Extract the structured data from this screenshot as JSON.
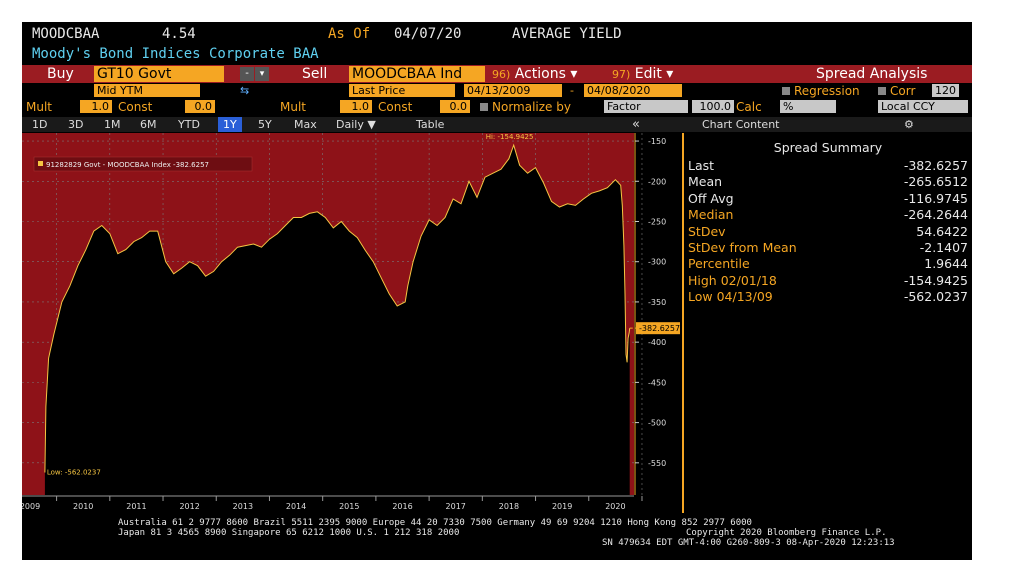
{
  "header": {
    "ticker": "MOODCBAA",
    "value": "4.54",
    "as_of_label": "As Of",
    "as_of_date": "04/07/20",
    "field": "AVERAGE YIELD",
    "description": "Moody's Bond Indices Corporate BAA"
  },
  "toolbar": {
    "buy_label": "Buy",
    "buy_security": "GT10 Govt",
    "dropdown_glyph": "-",
    "menu_glyph": "▾",
    "sell_label": "Sell",
    "sell_security": "MOODCBAA Ind",
    "actions_num": "96)",
    "actions_label": "Actions ▾",
    "edit_num": "97)",
    "edit_label": "Edit ▾",
    "title": "Spread Analysis"
  },
  "settings": {
    "buy_field": "Mid YTM",
    "swap_glyph": "⇆",
    "sell_field": "Last Price",
    "start_date": "04/13/2009",
    "date_sep": "-",
    "end_date": "04/08/2020",
    "regression_label": "Regression",
    "corr_label": "Corr",
    "corr_window": "120",
    "mult_label": "Mult",
    "const_label": "Const",
    "buy_mult": "1.0",
    "buy_const": "0.0",
    "sell_mult": "1.0",
    "sell_const": "0.0",
    "normalize_label": "Normalize by",
    "normalize_value": "Factor",
    "normalize_base": "100.0",
    "calc_label": "Calc",
    "calc_value": "%",
    "currency": "Local CCY"
  },
  "periods": [
    "1D",
    "3D",
    "1M",
    "6M",
    "YTD",
    "1Y",
    "5Y",
    "Max"
  ],
  "toolbar2": {
    "frequency": "Daily ▼",
    "table": "Table",
    "collapse_glyph": "«",
    "chart_content": "Chart Content",
    "gear_glyph": "⚙"
  },
  "summary": {
    "title": "Spread Summary",
    "rows": [
      {
        "label": "Last",
        "value": "-382.6257",
        "color": "white"
      },
      {
        "label": "Mean",
        "value": "-265.6512",
        "color": "white"
      },
      {
        "label": "Off Avg",
        "value": "-116.9745",
        "color": "white"
      },
      {
        "label": "Median",
        "value": "-264.2644",
        "color": "amber"
      },
      {
        "label": "StDev",
        "value": "54.6422",
        "color": "amber"
      },
      {
        "label": "StDev from Mean",
        "value": "-2.1407",
        "color": "amber"
      },
      {
        "label": "Percentile",
        "value": "1.9644",
        "color": "amber"
      },
      {
        "label": "High 02/01/18",
        "value": "-154.9425",
        "color": "amber"
      },
      {
        "label": "Low 04/13/09",
        "value": "-562.0237",
        "color": "amber"
      }
    ]
  },
  "chart_data": {
    "type": "area",
    "legend": "91282829 Govt - MOODCBAA Index  -382.6257",
    "legend_position": "top-left",
    "xlim": [
      2008.85,
      2020.35
    ],
    "ylim": [
      -590,
      -140
    ],
    "x_ticks": [
      2009,
      2010,
      2011,
      2012,
      2013,
      2014,
      2015,
      2016,
      2017,
      2018,
      2019,
      2020
    ],
    "y_ticks": [
      -150,
      -200,
      -250,
      -300,
      -350,
      -400,
      -450,
      -500,
      -550
    ],
    "last_value": -382.6257,
    "last_label": "-382.6257",
    "high_label": "Hi: -154.9425",
    "low_label": "Low: -562.0237",
    "grid": true,
    "series": [
      {
        "x": [
          2009.28,
          2009.3,
          2009.35,
          2009.45,
          2009.6,
          2009.75,
          2009.9,
          2010.05,
          2010.2,
          2010.35,
          2010.5,
          2010.65,
          2010.8,
          2010.95,
          2011.1,
          2011.25,
          2011.4,
          2011.55,
          2011.7,
          2011.85,
          2012.0,
          2012.15,
          2012.3,
          2012.45,
          2012.6,
          2012.75,
          2012.9,
          2013.05,
          2013.2,
          2013.35,
          2013.5,
          2013.65,
          2013.8,
          2013.95,
          2014.1,
          2014.25,
          2014.4,
          2014.55,
          2014.7,
          2014.85,
          2015.0,
          2015.15,
          2015.3,
          2015.45,
          2015.6,
          2015.75,
          2015.9,
          2016.05,
          2016.1,
          2016.2,
          2016.35,
          2016.5,
          2016.65,
          2016.8,
          2016.95,
          2017.1,
          2017.25,
          2017.4,
          2017.55,
          2017.7,
          2017.85,
          2018.0,
          2018.09,
          2018.2,
          2018.35,
          2018.5,
          2018.65,
          2018.8,
          2018.95,
          2019.1,
          2019.25,
          2019.4,
          2019.55,
          2019.7,
          2019.85,
          2020.0,
          2020.1,
          2020.13,
          2020.16,
          2020.18,
          2020.2,
          2020.22,
          2020.24,
          2020.26,
          2020.27
        ],
        "y": [
          -562.0,
          -480,
          -420,
          -390,
          -350,
          -330,
          -305,
          -285,
          -262,
          -255,
          -265,
          -290,
          -285,
          -275,
          -270,
          -262,
          -262,
          -300,
          -315,
          -308,
          -300,
          -305,
          -318,
          -312,
          -300,
          -292,
          -282,
          -280,
          -278,
          -282,
          -272,
          -265,
          -255,
          -245,
          -245,
          -240,
          -238,
          -245,
          -258,
          -250,
          -262,
          -270,
          -286,
          -300,
          -320,
          -340,
          -355,
          -350,
          -330,
          -300,
          -268,
          -248,
          -255,
          -245,
          -222,
          -228,
          -200,
          -220,
          -195,
          -190,
          -185,
          -172,
          -155,
          -180,
          -190,
          -183,
          -202,
          -225,
          -232,
          -228,
          -230,
          -222,
          -215,
          -212,
          -208,
          -198,
          -205,
          -230,
          -280,
          -340,
          -415,
          -425,
          -395,
          -388,
          -382.6
        ]
      }
    ]
  },
  "footer": {
    "line1": "Australia 61 2 9777 8600 Brazil 5511 2395 9000 Europe 44 20 7330 7500 Germany 49 69 9204 1210 Hong Kong 852 2977 6000",
    "line2": "Japan 81 3 4565 8900        Singapore 65 6212 1000         U.S. 1 212 318 2000",
    "copyright": "Copyright 2020 Bloomberg Finance L.P.",
    "session": "SN 479634 EDT  GMT-4:00 G260-809-3 08-Apr-2020 12:23:13"
  }
}
